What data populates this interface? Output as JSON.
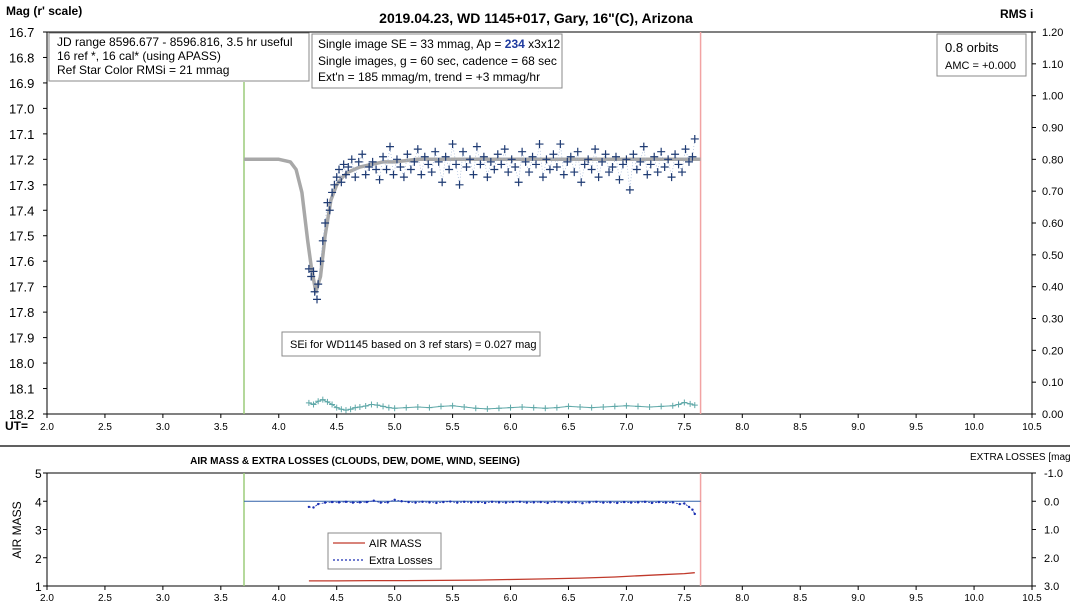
{
  "chart_data": [
    {
      "type": "scatter",
      "title": "2019.04.23, WD 1145+017, Gary, 16\"(C), Arizona",
      "ylabel": "Mag (r' scale)",
      "xlabel": "UT=",
      "y2label": "RMS i",
      "xlim": [
        2.0,
        10.5
      ],
      "ylim": [
        16.7,
        18.2
      ],
      "y_inverted": true,
      "y2lim": [
        0.0,
        1.2
      ],
      "x_ticks": [
        "2.0",
        "2.5",
        "3.0",
        "3.5",
        "4.0",
        "4.5",
        "5.0",
        "5.5",
        "6.0",
        "6.5",
        "7.0",
        "7.5",
        "8.0",
        "8.5",
        "9.0",
        "9.5",
        "10.0",
        "10.5"
      ],
      "y_ticks": [
        "16.7",
        "16.8",
        "16.9",
        "17.0",
        "17.1",
        "17.2",
        "17.3",
        "17.4",
        "17.5",
        "17.6",
        "17.7",
        "17.8",
        "17.9",
        "18.0",
        "18.1",
        "18.2"
      ],
      "y2_ticks": [
        "1.20",
        "1.10",
        "1.00",
        "0.90",
        "0.80",
        "0.70",
        "0.60",
        "0.50",
        "0.40",
        "0.30",
        "0.20",
        "0.10",
        "0.00"
      ],
      "vertical_markers": {
        "start": 3.7,
        "end": 7.64
      },
      "colors": {
        "data": "#1f3b73",
        "model": "#a8a8a8",
        "rms": "#5fa8a8",
        "start": "#9ccc7a",
        "end": "#f2a3a3"
      },
      "info_left": [
        "JD range 8596.677 - 8596.816, 3.5 hr useful",
        "16 ref *, 16 cal* (using APASS)",
        "Ref Star Color RMSi = 21 mmag"
      ],
      "info_mid": {
        "line1_pre": "Single image SE = 33 mmag, Ap = ",
        "line1_ap": "234",
        "line1_post": " x3x12",
        "line2": "Single images, g = 60 sec, cadence = 68 sec",
        "line3": "Ext'n = 185 mmag/m, trend = +3 mmag/hr"
      },
      "info_right": {
        "orbits": "0.8 orbits",
        "amc": "AMC = +0.000"
      },
      "annotation": "SEi for WD1145 based on 3 ref stars) = 0.027 mag",
      "model_curve": {
        "baseline_mag": 17.2,
        "dip_depth_mag": 0.52,
        "dip_center_ut": 4.32,
        "x": [
          3.7,
          4.0,
          4.1,
          4.15,
          4.2,
          4.25,
          4.28,
          4.32,
          4.36,
          4.4,
          4.45,
          4.5,
          4.55,
          4.6,
          4.65,
          4.7,
          4.8,
          4.9,
          5.0,
          5.2,
          5.5,
          6.0,
          6.5,
          7.0,
          7.5,
          7.64
        ],
        "y": [
          17.2,
          17.2,
          17.21,
          17.24,
          17.33,
          17.52,
          17.62,
          17.72,
          17.66,
          17.5,
          17.36,
          17.3,
          17.27,
          17.25,
          17.24,
          17.23,
          17.22,
          17.21,
          17.21,
          17.2,
          17.2,
          17.2,
          17.2,
          17.2,
          17.2,
          17.2
        ]
      },
      "series": [
        {
          "name": "",
          "x": [
            4.26,
            4.28,
            4.3,
            4.31,
            4.33,
            4.34,
            4.36,
            4.38,
            4.4,
            4.42,
            4.44,
            4.46,
            4.48,
            4.5,
            4.52,
            4.54,
            4.56,
            4.58,
            4.6,
            4.63,
            4.66,
            4.69,
            4.72,
            4.75,
            4.78,
            4.81,
            4.84,
            4.87,
            4.9,
            4.93,
            4.96,
            4.99,
            5.02,
            5.05,
            5.08,
            5.11,
            5.14,
            5.17,
            5.2,
            5.23,
            5.26,
            5.29,
            5.32,
            5.35,
            5.38,
            5.41,
            5.44,
            5.47,
            5.5,
            5.53,
            5.56,
            5.59,
            5.62,
            5.65,
            5.68,
            5.71,
            5.74,
            5.77,
            5.8,
            5.83,
            5.86,
            5.89,
            5.92,
            5.95,
            5.98,
            6.01,
            6.04,
            6.07,
            6.1,
            6.13,
            6.16,
            6.19,
            6.22,
            6.25,
            6.28,
            6.31,
            6.34,
            6.37,
            6.4,
            6.43,
            6.46,
            6.49,
            6.52,
            6.55,
            6.58,
            6.61,
            6.64,
            6.67,
            6.7,
            6.73,
            6.76,
            6.79,
            6.82,
            6.85,
            6.88,
            6.91,
            6.94,
            6.97,
            7.0,
            7.03,
            7.06,
            7.09,
            7.12,
            7.15,
            7.18,
            7.21,
            7.24,
            7.27,
            7.3,
            7.33,
            7.36,
            7.39,
            7.42,
            7.45,
            7.48,
            7.51,
            7.54,
            7.57,
            7.59
          ],
          "y": [
            17.63,
            17.66,
            17.64,
            17.72,
            17.75,
            17.69,
            17.6,
            17.52,
            17.45,
            17.37,
            17.4,
            17.33,
            17.3,
            17.27,
            17.24,
            17.29,
            17.22,
            17.26,
            17.23,
            17.2,
            17.27,
            17.21,
            17.18,
            17.26,
            17.23,
            17.21,
            17.24,
            17.28,
            17.19,
            17.24,
            17.15,
            17.26,
            17.2,
            17.23,
            17.27,
            17.18,
            17.24,
            17.21,
            17.16,
            17.26,
            17.19,
            17.22,
            17.25,
            17.17,
            17.21,
            17.29,
            17.19,
            17.24,
            17.14,
            17.22,
            17.3,
            17.17,
            17.23,
            17.2,
            17.26,
            17.15,
            17.22,
            17.19,
            17.27,
            17.21,
            17.24,
            17.18,
            17.22,
            17.16,
            17.25,
            17.2,
            17.23,
            17.29,
            17.17,
            17.21,
            17.25,
            17.19,
            17.22,
            17.14,
            17.27,
            17.2,
            17.24,
            17.18,
            17.23,
            17.14,
            17.26,
            17.21,
            17.19,
            17.25,
            17.17,
            17.29,
            17.22,
            17.2,
            17.24,
            17.16,
            17.27,
            17.21,
            17.18,
            17.25,
            17.23,
            17.19,
            17.28,
            17.22,
            17.2,
            17.32,
            17.18,
            17.24,
            17.21,
            17.15,
            17.26,
            17.22,
            17.19,
            17.25,
            17.17,
            17.23,
            17.2,
            17.27,
            17.18,
            17.22,
            17.25,
            17.16,
            17.21,
            17.19,
            17.12
          ]
        }
      ],
      "rms_series": {
        "x": [
          4.26,
          4.3,
          4.34,
          4.38,
          4.42,
          4.46,
          4.5,
          4.54,
          4.58,
          4.62,
          4.66,
          4.7,
          4.75,
          4.8,
          4.85,
          4.9,
          4.95,
          5.0,
          5.1,
          5.2,
          5.3,
          5.4,
          5.5,
          5.6,
          5.7,
          5.8,
          5.9,
          6.0,
          6.1,
          6.2,
          6.3,
          6.4,
          6.5,
          6.6,
          6.7,
          6.8,
          6.9,
          7.0,
          7.1,
          7.2,
          7.3,
          7.4,
          7.45,
          7.5,
          7.55,
          7.59
        ],
        "y": [
          0.035,
          0.03,
          0.04,
          0.045,
          0.038,
          0.03,
          0.02,
          0.015,
          0.012,
          0.015,
          0.02,
          0.022,
          0.025,
          0.03,
          0.028,
          0.024,
          0.02,
          0.018,
          0.02,
          0.022,
          0.02,
          0.024,
          0.026,
          0.022,
          0.018,
          0.016,
          0.018,
          0.02,
          0.022,
          0.02,
          0.018,
          0.02,
          0.024,
          0.022,
          0.02,
          0.022,
          0.024,
          0.026,
          0.024,
          0.022,
          0.024,
          0.026,
          0.03,
          0.036,
          0.032,
          0.028
        ]
      }
    },
    {
      "type": "line",
      "title": "AIR MASS & EXTRA LOSSES (CLOUDS, DEW, DOME, WIND, SEEING)",
      "ylabel": "AIR MASS",
      "y2label": "EXTRA LOSSES [mag]",
      "xlim": [
        2.0,
        10.5
      ],
      "ylim": [
        1,
        5
      ],
      "y2lim": [
        -1.0,
        3.0
      ],
      "y2_inverted": true,
      "x_ticks": [
        "2.0",
        "2.5",
        "3.0",
        "3.5",
        "4.0",
        "4.5",
        "5.0",
        "5.5",
        "6.0",
        "6.5",
        "7.0",
        "7.5",
        "8.0",
        "8.5",
        "9.0",
        "9.5",
        "10.0",
        "10.5"
      ],
      "y_ticks": [
        "5",
        "4",
        "3",
        "2",
        "1"
      ],
      "y2_ticks": [
        "-1.0",
        "0.0",
        "1.0",
        "2.0",
        "3.0"
      ],
      "vertical_markers": {
        "start": 3.7,
        "end": 7.64
      },
      "reference_line": {
        "from": 3.7,
        "to": 7.64,
        "value": 0.0
      },
      "colors": {
        "airmass": "#c0392b",
        "losses": "#1a2fb3",
        "reference": "#3060a8",
        "start": "#9ccc7a",
        "end": "#f2a3a3"
      },
      "legend": [
        "AIR MASS",
        "Extra Losses"
      ],
      "series": [
        {
          "name": "AIR MASS",
          "x": [
            4.26,
            4.5,
            4.8,
            5.1,
            5.4,
            5.7,
            6.0,
            6.3,
            6.6,
            6.9,
            7.1,
            7.3,
            7.5,
            7.59
          ],
          "y": [
            1.18,
            1.18,
            1.19,
            1.19,
            1.2,
            1.21,
            1.23,
            1.25,
            1.28,
            1.32,
            1.36,
            1.4,
            1.44,
            1.47
          ]
        },
        {
          "name": "Extra Losses",
          "x": [
            4.26,
            4.3,
            4.34,
            4.4,
            4.46,
            4.52,
            4.58,
            4.64,
            4.7,
            4.76,
            4.82,
            4.88,
            4.94,
            5.0,
            5.06,
            5.12,
            5.18,
            5.24,
            5.3,
            5.36,
            5.42,
            5.48,
            5.54,
            5.6,
            5.66,
            5.72,
            5.78,
            5.84,
            5.9,
            5.96,
            6.02,
            6.08,
            6.14,
            6.2,
            6.26,
            6.32,
            6.38,
            6.44,
            6.5,
            6.56,
            6.62,
            6.68,
            6.74,
            6.8,
            6.86,
            6.92,
            6.98,
            7.04,
            7.1,
            7.16,
            7.22,
            7.28,
            7.34,
            7.4,
            7.46,
            7.5,
            7.54,
            7.57,
            7.59
          ],
          "y": [
            0.2,
            0.22,
            0.1,
            0.05,
            0.03,
            0.04,
            0.02,
            0.05,
            0.04,
            0.03,
            -0.02,
            0.05,
            0.04,
            -0.05,
            0.0,
            0.03,
            0.05,
            0.02,
            0.04,
            0.06,
            0.03,
            0.01,
            0.05,
            0.02,
            0.04,
            0.03,
            0.06,
            0.02,
            0.04,
            0.05,
            0.03,
            0.02,
            0.05,
            0.04,
            0.03,
            0.06,
            0.02,
            0.04,
            0.05,
            0.03,
            0.07,
            0.04,
            0.02,
            0.05,
            0.04,
            0.06,
            0.03,
            0.05,
            0.04,
            0.02,
            0.06,
            0.03,
            0.05,
            0.04,
            0.1,
            0.08,
            0.2,
            0.3,
            0.45
          ]
        }
      ]
    }
  ]
}
